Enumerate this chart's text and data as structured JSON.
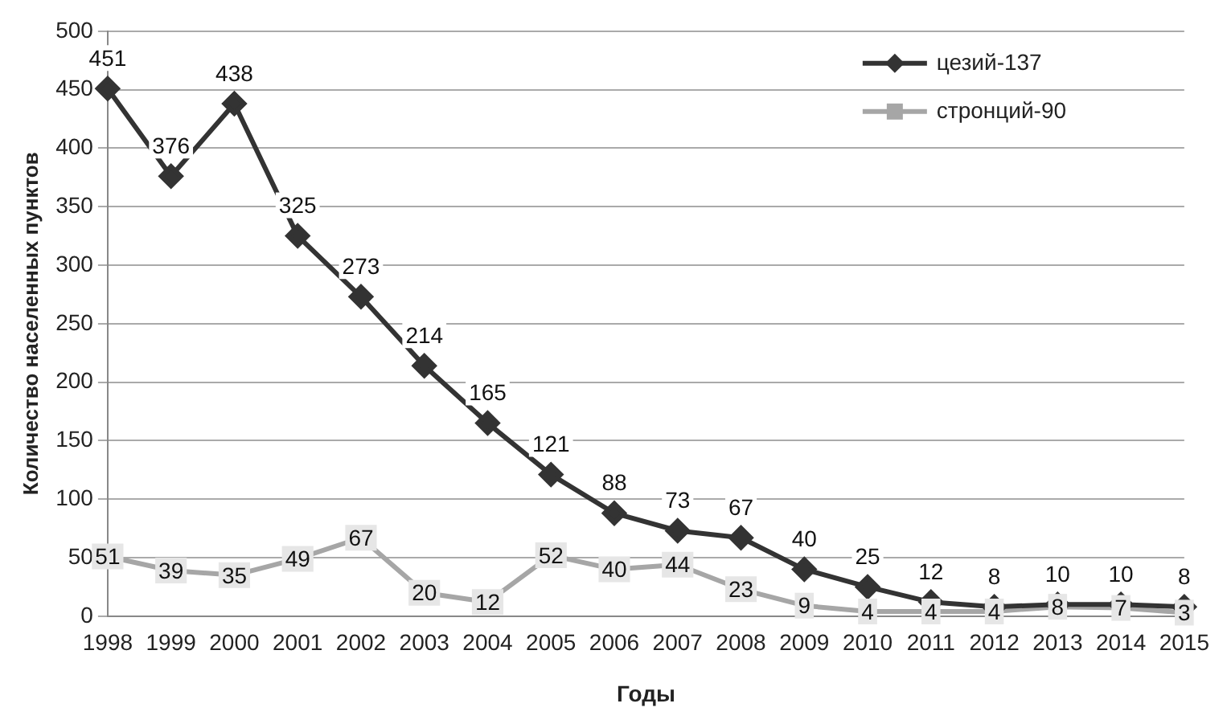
{
  "chart_data": {
    "type": "line",
    "xlabel": "Годы",
    "ylabel": "Количество населенных пунктов",
    "categories": [
      "1998",
      "1999",
      "2000",
      "2001",
      "2002",
      "2003",
      "2004",
      "2005",
      "2006",
      "2007",
      "2008",
      "2009",
      "2010",
      "2011",
      "2012",
      "2013",
      "2014",
      "2015"
    ],
    "series": [
      {
        "name": "цезий-137",
        "color": "#333333",
        "marker": "diamond",
        "values": [
          451,
          376,
          438,
          325,
          273,
          214,
          165,
          121,
          88,
          73,
          67,
          40,
          25,
          12,
          8,
          10,
          10,
          8
        ]
      },
      {
        "name": "стронций-90",
        "color": "#a6a6a6",
        "marker": "square",
        "values": [
          51,
          39,
          35,
          49,
          67,
          20,
          12,
          52,
          40,
          44,
          23,
          9,
          4,
          4,
          4,
          8,
          7,
          3
        ]
      }
    ],
    "ylim": [
      0,
      500
    ],
    "yticks": [
      0,
      50,
      100,
      150,
      200,
      250,
      300,
      350,
      400,
      450,
      500
    ],
    "grid": "y",
    "legend": "top right",
    "data_labels": true
  }
}
